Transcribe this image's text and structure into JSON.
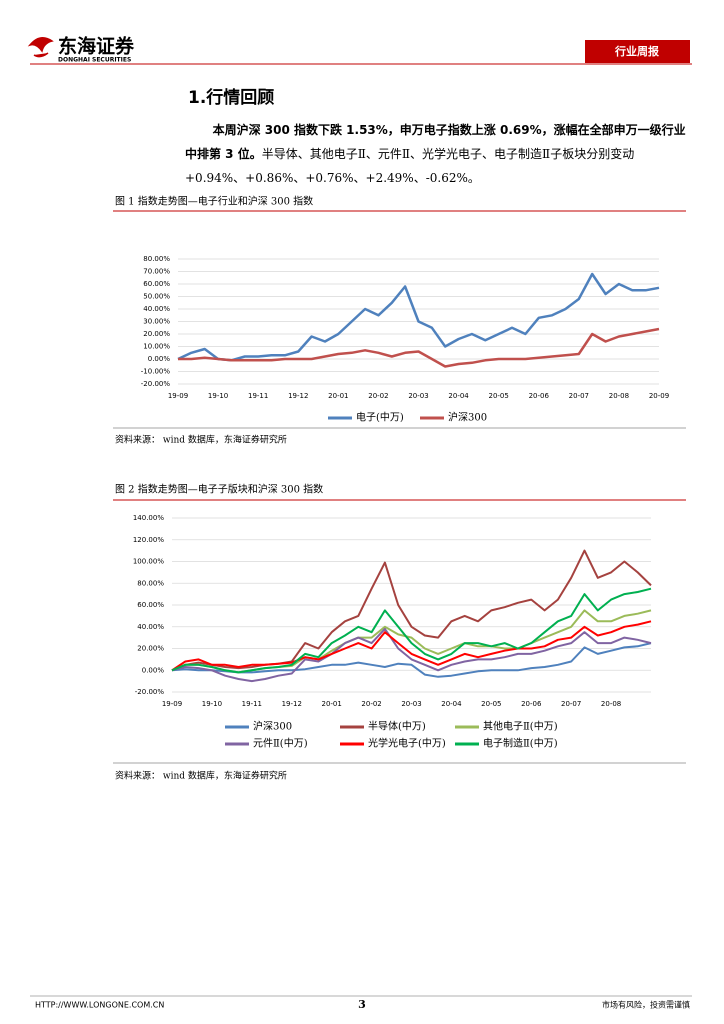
{
  "header": {
    "logo_cn": "东海证券",
    "logo_en": "DONGHAI SECURITIES",
    "tag": "行业周报"
  },
  "section_title": "1.行情回顾",
  "paragraph": {
    "bold": "本周沪深 300 指数下跌 1.53%，申万电子指数上涨 0.69%，涨幅在全部申万一级行业中排第 3 位。",
    "normal": "半导体、其他电子Ⅱ、元件Ⅱ、光学光电子、电子制造Ⅱ子板块分别变动+0.94%、+0.86%、+0.76%、+2.49%、-0.62%。"
  },
  "figures": [
    {
      "caption": "图 1 指数走势图—电子行业和沪深 300 指数",
      "source": "资料来源：  wind 数据库，东海证券研究所"
    },
    {
      "caption": "图 2 指数走势图—电子子版块和沪深 300 指数",
      "source": "资料来源：  wind 数据库，东海证券研究所"
    }
  ],
  "footer": {
    "url": "HTTP://WWW.LONGONE.COM.CN",
    "page": "3",
    "disclaimer": "市场有风险，投资需谨慎"
  },
  "chart_data": [
    {
      "type": "line",
      "categories": [
        "19-09",
        null,
        null,
        "19-10",
        null,
        null,
        "19-11",
        null,
        null,
        "19-12",
        null,
        null,
        "20-01",
        null,
        null,
        "20-02",
        null,
        null,
        "20-03",
        null,
        null,
        "20-04",
        null,
        null,
        "20-05",
        null,
        null,
        "20-06",
        null,
        null,
        "20-07",
        null,
        null,
        "20-08",
        null,
        null,
        "20-09"
      ],
      "series": [
        {
          "name": "电子(中万)",
          "color": "#4f81bd",
          "values": [
            0,
            5,
            8,
            0,
            -1,
            2,
            2,
            3,
            3,
            6,
            18,
            14,
            20,
            30,
            40,
            35,
            45,
            58,
            30,
            25,
            10,
            16,
            20,
            15,
            20,
            25,
            20,
            33,
            35,
            40,
            48,
            68,
            52,
            60,
            55,
            55,
            57
          ]
        },
        {
          "name": "沪深300",
          "color": "#c0504d",
          "values": [
            0,
            0,
            1,
            0,
            -1,
            -1,
            -1,
            -1,
            0,
            0,
            0,
            2,
            4,
            5,
            7,
            5,
            2,
            5,
            6,
            0,
            -6,
            -4,
            -3,
            -1,
            0,
            0,
            0,
            1,
            2,
            3,
            4,
            20,
            14,
            18,
            20,
            22,
            24
          ]
        }
      ],
      "ylim": [
        -20,
        80
      ],
      "yticks": [
        {
          "value": -20,
          "label": "-20.00%"
        },
        {
          "value": -10,
          "label": "-10.00%"
        },
        {
          "value": 0,
          "label": "0.00%"
        },
        {
          "value": 10,
          "label": "10.00%"
        },
        {
          "value": 20,
          "label": "20.00%"
        },
        {
          "value": 30,
          "label": "30.00%"
        },
        {
          "value": 40,
          "label": "40.00%"
        },
        {
          "value": 50,
          "label": "50.00%"
        },
        {
          "value": 60,
          "label": "60.00%"
        },
        {
          "value": 70,
          "label": "70.00%"
        },
        {
          "value": 80,
          "label": "80.00%"
        }
      ],
      "grid": true,
      "legend": "bottom"
    },
    {
      "type": "line",
      "categories": [
        "19-09",
        null,
        null,
        "19-10",
        null,
        null,
        "19-11",
        null,
        null,
        "19-12",
        null,
        null,
        "20-01",
        null,
        null,
        "20-02",
        null,
        null,
        "20-03",
        null,
        null,
        "20-04",
        null,
        null,
        "20-05",
        null,
        null,
        "20-06",
        null,
        null,
        "20-07",
        null,
        null,
        "20-08",
        null,
        null,
        null
      ],
      "series": [
        {
          "name": "沪深300",
          "color": "#4f81bd",
          "values": [
            0,
            1,
            0,
            0,
            -1,
            -2,
            -2,
            -1,
            0,
            0,
            1,
            3,
            5,
            5,
            7,
            5,
            3,
            6,
            5,
            -4,
            -6,
            -5,
            -3,
            -1,
            0,
            0,
            0,
            2,
            3,
            5,
            8,
            21,
            15,
            18,
            21,
            22,
            25
          ]
        },
        {
          "name": "半导体(中万)",
          "color": "#a5423f",
          "values": [
            0,
            5,
            7,
            5,
            3,
            2,
            3,
            5,
            6,
            8,
            25,
            20,
            35,
            45,
            50,
            75,
            99,
            60,
            40,
            32,
            30,
            45,
            50,
            45,
            55,
            58,
            62,
            65,
            55,
            65,
            85,
            110,
            85,
            90,
            100,
            90,
            78
          ]
        },
        {
          "name": "其他电子Ⅱ(中万)",
          "color": "#9bbb59",
          "values": [
            0,
            5,
            5,
            3,
            0,
            -2,
            0,
            2,
            3,
            4,
            12,
            10,
            18,
            25,
            30,
            30,
            40,
            33,
            30,
            20,
            15,
            20,
            25,
            22,
            22,
            20,
            20,
            25,
            30,
            35,
            40,
            55,
            45,
            45,
            50,
            52,
            55
          ]
        },
        {
          "name": "元件Ⅱ(中万)",
          "color": "#8064a2",
          "values": [
            0,
            3,
            2,
            0,
            -5,
            -8,
            -10,
            -8,
            -5,
            -3,
            10,
            8,
            15,
            25,
            30,
            25,
            38,
            20,
            10,
            5,
            0,
            5,
            8,
            10,
            10,
            12,
            15,
            15,
            18,
            22,
            25,
            35,
            25,
            25,
            30,
            28,
            25
          ]
        },
        {
          "name": "光学光电子(中万)",
          "color": "#ff0000",
          "values": [
            0,
            8,
            10,
            5,
            5,
            3,
            5,
            5,
            6,
            7,
            12,
            10,
            15,
            20,
            25,
            20,
            35,
            25,
            15,
            10,
            5,
            10,
            15,
            12,
            15,
            18,
            20,
            20,
            22,
            28,
            30,
            40,
            32,
            35,
            40,
            42,
            45
          ]
        },
        {
          "name": "电子制造Ⅱ(中万)",
          "color": "#00b050",
          "values": [
            0,
            5,
            5,
            3,
            0,
            -2,
            0,
            2,
            3,
            5,
            15,
            12,
            25,
            32,
            40,
            35,
            55,
            40,
            25,
            15,
            10,
            15,
            25,
            25,
            22,
            25,
            20,
            25,
            35,
            45,
            50,
            70,
            55,
            65,
            70,
            72,
            75
          ]
        }
      ],
      "ylim": [
        -20,
        140
      ],
      "yticks": [
        {
          "value": -20,
          "label": "-20.00%"
        },
        {
          "value": 0,
          "label": "0.00%"
        },
        {
          "value": 20,
          "label": "20.00%"
        },
        {
          "value": 40,
          "label": "40.00%"
        },
        {
          "value": 60,
          "label": "60.00%"
        },
        {
          "value": 80,
          "label": "80.00%"
        },
        {
          "value": 100,
          "label": "100.00%"
        },
        {
          "value": 120,
          "label": "120.00%"
        },
        {
          "value": 140,
          "label": "140.00%"
        }
      ],
      "grid": true,
      "legend": "bottom"
    }
  ]
}
